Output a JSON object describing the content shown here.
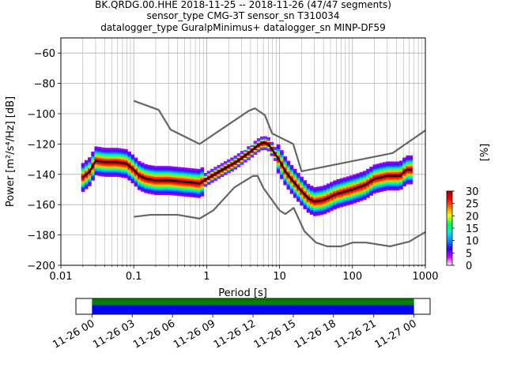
{
  "chart_data": [
    {
      "type": "heatmap",
      "title_lines": [
        "BK.QRDG.00.HHE   2018-11-25 -- 2018-11-26  (47/47 segments)",
        "sensor_type CMG-3T sensor_sn T310034",
        "datalogger_type GuralpMinimus+ datalogger_sn MINP-DF59"
      ],
      "xlabel": "Period [s]",
      "ylabel": "Power [m²/s⁴/Hz] [dB]",
      "xscale": "log",
      "xlim": [
        0.01,
        1000
      ],
      "ylim": [
        -200,
        -50
      ],
      "x_ticks": [
        0.01,
        0.1,
        1,
        10,
        100,
        1000
      ],
      "x_tick_labels": [
        "0.01",
        "0.1",
        "1",
        "10",
        "100",
        "1000"
      ],
      "y_ticks": [
        -200,
        -180,
        -160,
        -140,
        -120,
        -100,
        -80,
        -60
      ],
      "y_tick_labels": [
        "−200",
        "−180",
        "−160",
        "−140",
        "−120",
        "−100",
        "−80",
        "−60"
      ],
      "grid": true,
      "colorbar": {
        "label": "[%]",
        "ticks": [
          0,
          5,
          10,
          15,
          20,
          25,
          30
        ],
        "range": [
          0,
          30
        ],
        "colors": [
          "#ffffff",
          "#d000ff",
          "#3000ff",
          "#0090ff",
          "#00e8e8",
          "#00ff40",
          "#f0ff00",
          "#ff8000",
          "#ff0000",
          "#a00000"
        ]
      },
      "series": [
        {
          "role": "new-high-noise-model",
          "color": "#666666",
          "points": [
            [
              0.1,
              -91.5
            ],
            [
              0.22,
              -97.5
            ],
            [
              0.32,
              -110.5
            ],
            [
              0.8,
              -120
            ],
            [
              3.8,
              -98
            ],
            [
              4.6,
              -96.5
            ],
            [
              6.3,
              -101
            ],
            [
              7.9,
              -113
            ],
            [
              15.4,
              -120
            ],
            [
              20,
              -138
            ],
            [
              354.8,
              -126
            ],
            [
              1000,
              -111
            ]
          ]
        },
        {
          "role": "new-low-noise-model",
          "color": "#666666",
          "points": [
            [
              0.1,
              -168
            ],
            [
              0.17,
              -166.7
            ],
            [
              0.4,
              -166.7
            ],
            [
              0.8,
              -169.2
            ],
            [
              1.24,
              -163.7
            ],
            [
              2.4,
              -148.6
            ],
            [
              4.3,
              -141.1
            ],
            [
              5,
              -141.1
            ],
            [
              6,
              -149
            ],
            [
              10,
              -163.8
            ],
            [
              12,
              -166.2
            ],
            [
              15.6,
              -162.1
            ],
            [
              21.9,
              -177.5
            ],
            [
              31.6,
              -185
            ],
            [
              45,
              -187.5
            ],
            [
              70,
              -187.5
            ],
            [
              101,
              -185
            ],
            [
              154,
              -185
            ],
            [
              328,
              -187.5
            ],
            [
              600,
              -184.4
            ],
            [
              1000,
              -178
            ]
          ]
        },
        {
          "role": "mode",
          "color": "#000000",
          "points": [
            [
              0.02,
              -142
            ],
            [
              0.025,
              -138
            ],
            [
              0.03,
              -131
            ],
            [
              0.04,
              -132
            ],
            [
              0.06,
              -132
            ],
            [
              0.08,
              -133
            ],
            [
              0.1,
              -137
            ],
            [
              0.12,
              -141
            ],
            [
              0.15,
              -143
            ],
            [
              0.2,
              -144
            ],
            [
              0.3,
              -144
            ],
            [
              0.5,
              -145
            ],
            [
              0.8,
              -146
            ],
            [
              1.0,
              -143
            ],
            [
              1.5,
              -138
            ],
            [
              2.5,
              -132
            ],
            [
              4.0,
              -125
            ],
            [
              5.0,
              -121
            ],
            [
              6.0,
              -119
            ],
            [
              7.0,
              -120
            ],
            [
              8.0,
              -124
            ],
            [
              10.0,
              -131
            ],
            [
              12.0,
              -138
            ],
            [
              15.0,
              -144
            ],
            [
              20.0,
              -151
            ],
            [
              25.0,
              -156
            ],
            [
              30.0,
              -158
            ],
            [
              40.0,
              -157
            ],
            [
              60.0,
              -153
            ],
            [
              100.0,
              -150
            ],
            [
              150.0,
              -147
            ],
            [
              200.0,
              -143
            ],
            [
              300.0,
              -141
            ],
            [
              450.0,
              -141
            ],
            [
              550.0,
              -137
            ],
            [
              650.0,
              -137
            ]
          ]
        }
      ]
    },
    {
      "type": "bar",
      "role": "data-coverage",
      "x_tick_labels": [
        "11-26 00",
        "11-26 03",
        "11-26 06",
        "11-26 09",
        "11-26 12",
        "11-26 15",
        "11-26 18",
        "11-26 21",
        "11-27 00"
      ],
      "x_ticks_hours": [
        0,
        3,
        6,
        9,
        12,
        15,
        18,
        21,
        24
      ],
      "xlim_hours": [
        -1.2,
        25.2
      ],
      "coverage_hours": [
        0,
        24
      ],
      "colors": {
        "available": "#008000",
        "used": "#0000ff"
      }
    }
  ]
}
